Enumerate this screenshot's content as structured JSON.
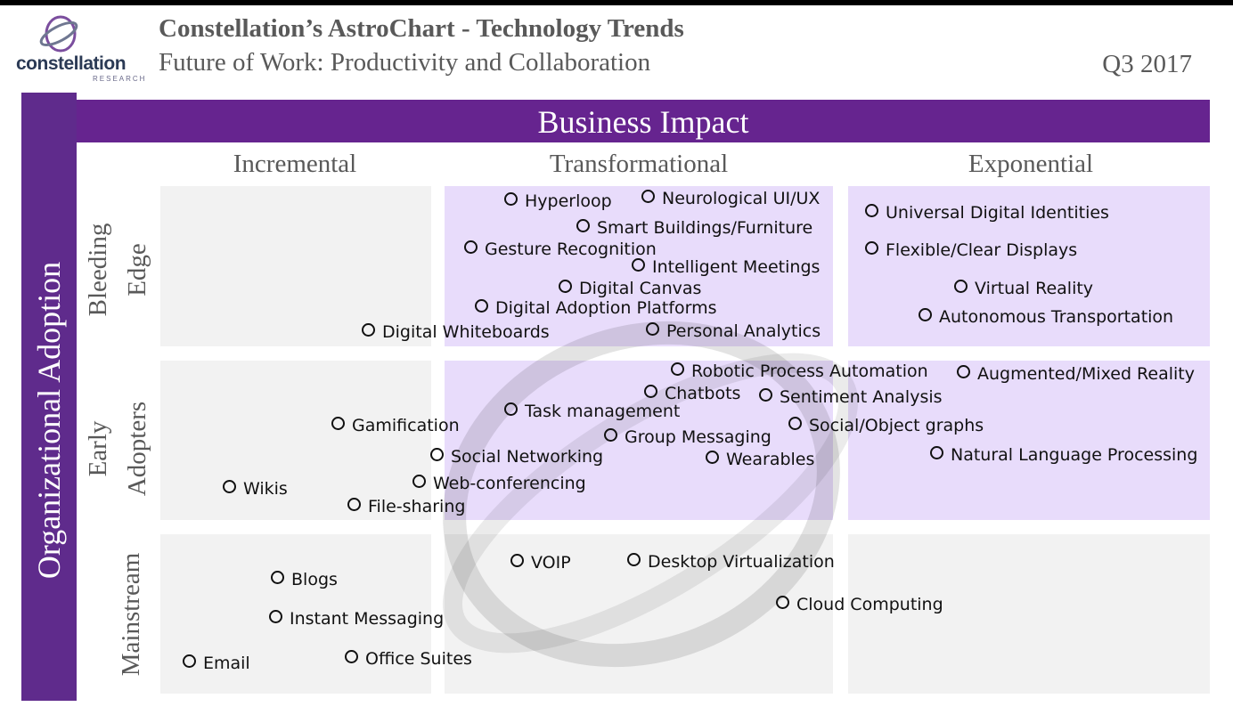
{
  "header": {
    "title": "Constellation’s AstroChart - Technology Trends",
    "subtitle": "Future of Work: Productivity and Collaboration",
    "period": "Q3 2017",
    "logo_text": "constellation",
    "logo_sub": "RESEARCH"
  },
  "colors": {
    "band": "#66248f",
    "transformational_fill": "#e8dcfb",
    "neutral_fill": "#f2f2f2",
    "header_text": "#595959"
  },
  "chart_data": {
    "type": "matrix",
    "xlabel": "Business Impact",
    "ylabel": "Organizational Adoption",
    "columns": [
      "Incremental",
      "Transformational",
      "Exponential"
    ],
    "rows": [
      "Bleeding Edge",
      "Early Adopters",
      "Mainstream"
    ],
    "items": [
      {
        "label": "Hyperloop",
        "impact": "Transformational",
        "adoption": "Bleeding Edge"
      },
      {
        "label": "Neurological UI/UX",
        "impact": "Transformational",
        "adoption": "Bleeding Edge"
      },
      {
        "label": "Smart Buildings/Furniture",
        "impact": "Transformational",
        "adoption": "Bleeding Edge"
      },
      {
        "label": "Gesture Recognition",
        "impact": "Transformational",
        "adoption": "Bleeding Edge"
      },
      {
        "label": "Intelligent Meetings",
        "impact": "Transformational",
        "adoption": "Bleeding Edge"
      },
      {
        "label": "Digital Canvas",
        "impact": "Transformational",
        "adoption": "Bleeding Edge"
      },
      {
        "label": "Digital Adoption Platforms",
        "impact": "Transformational",
        "adoption": "Bleeding Edge"
      },
      {
        "label": "Digital Whiteboards",
        "impact": "Incremental",
        "adoption": "Bleeding Edge"
      },
      {
        "label": "Personal Analytics",
        "impact": "Transformational",
        "adoption": "Bleeding Edge"
      },
      {
        "label": "Universal Digital Identities",
        "impact": "Exponential",
        "adoption": "Bleeding Edge"
      },
      {
        "label": "Flexible/Clear Displays",
        "impact": "Exponential",
        "adoption": "Bleeding Edge"
      },
      {
        "label": "Virtual Reality",
        "impact": "Exponential",
        "adoption": "Bleeding Edge"
      },
      {
        "label": "Autonomous Transportation",
        "impact": "Exponential",
        "adoption": "Bleeding Edge"
      },
      {
        "label": "Robotic Process Automation",
        "impact": "Transformational",
        "adoption": "Early Adopters"
      },
      {
        "label": "Augmented/Mixed Reality",
        "impact": "Exponential",
        "adoption": "Early Adopters"
      },
      {
        "label": "Chatbots",
        "impact": "Transformational",
        "adoption": "Early Adopters"
      },
      {
        "label": "Sentiment Analysis",
        "impact": "Transformational",
        "adoption": "Early Adopters"
      },
      {
        "label": "Task management",
        "impact": "Transformational",
        "adoption": "Early Adopters"
      },
      {
        "label": "Gamification",
        "impact": "Incremental",
        "adoption": "Early Adopters"
      },
      {
        "label": "Social/Object graphs",
        "impact": "Transformational",
        "adoption": "Early Adopters"
      },
      {
        "label": "Group Messaging",
        "impact": "Transformational",
        "adoption": "Early Adopters"
      },
      {
        "label": "Social Networking",
        "impact": "Transformational",
        "adoption": "Early Adopters"
      },
      {
        "label": "Wearables",
        "impact": "Transformational",
        "adoption": "Early Adopters"
      },
      {
        "label": "Natural Language Processing",
        "impact": "Exponential",
        "adoption": "Early Adopters"
      },
      {
        "label": "Web-conferencing",
        "impact": "Incremental",
        "adoption": "Early Adopters"
      },
      {
        "label": "Wikis",
        "impact": "Incremental",
        "adoption": "Early Adopters"
      },
      {
        "label": "File-sharing",
        "impact": "Incremental",
        "adoption": "Early Adopters"
      },
      {
        "label": "VOIP",
        "impact": "Transformational",
        "adoption": "Mainstream"
      },
      {
        "label": "Desktop Virtualization",
        "impact": "Transformational",
        "adoption": "Mainstream"
      },
      {
        "label": "Blogs",
        "impact": "Incremental",
        "adoption": "Mainstream"
      },
      {
        "label": "Cloud Computing",
        "impact": "Transformational",
        "adoption": "Mainstream"
      },
      {
        "label": "Instant Messaging",
        "impact": "Incremental",
        "adoption": "Mainstream"
      },
      {
        "label": "Office Suites",
        "impact": "Incremental",
        "adoption": "Mainstream"
      },
      {
        "label": "Email",
        "impact": "Incremental",
        "adoption": "Mainstream"
      }
    ]
  }
}
